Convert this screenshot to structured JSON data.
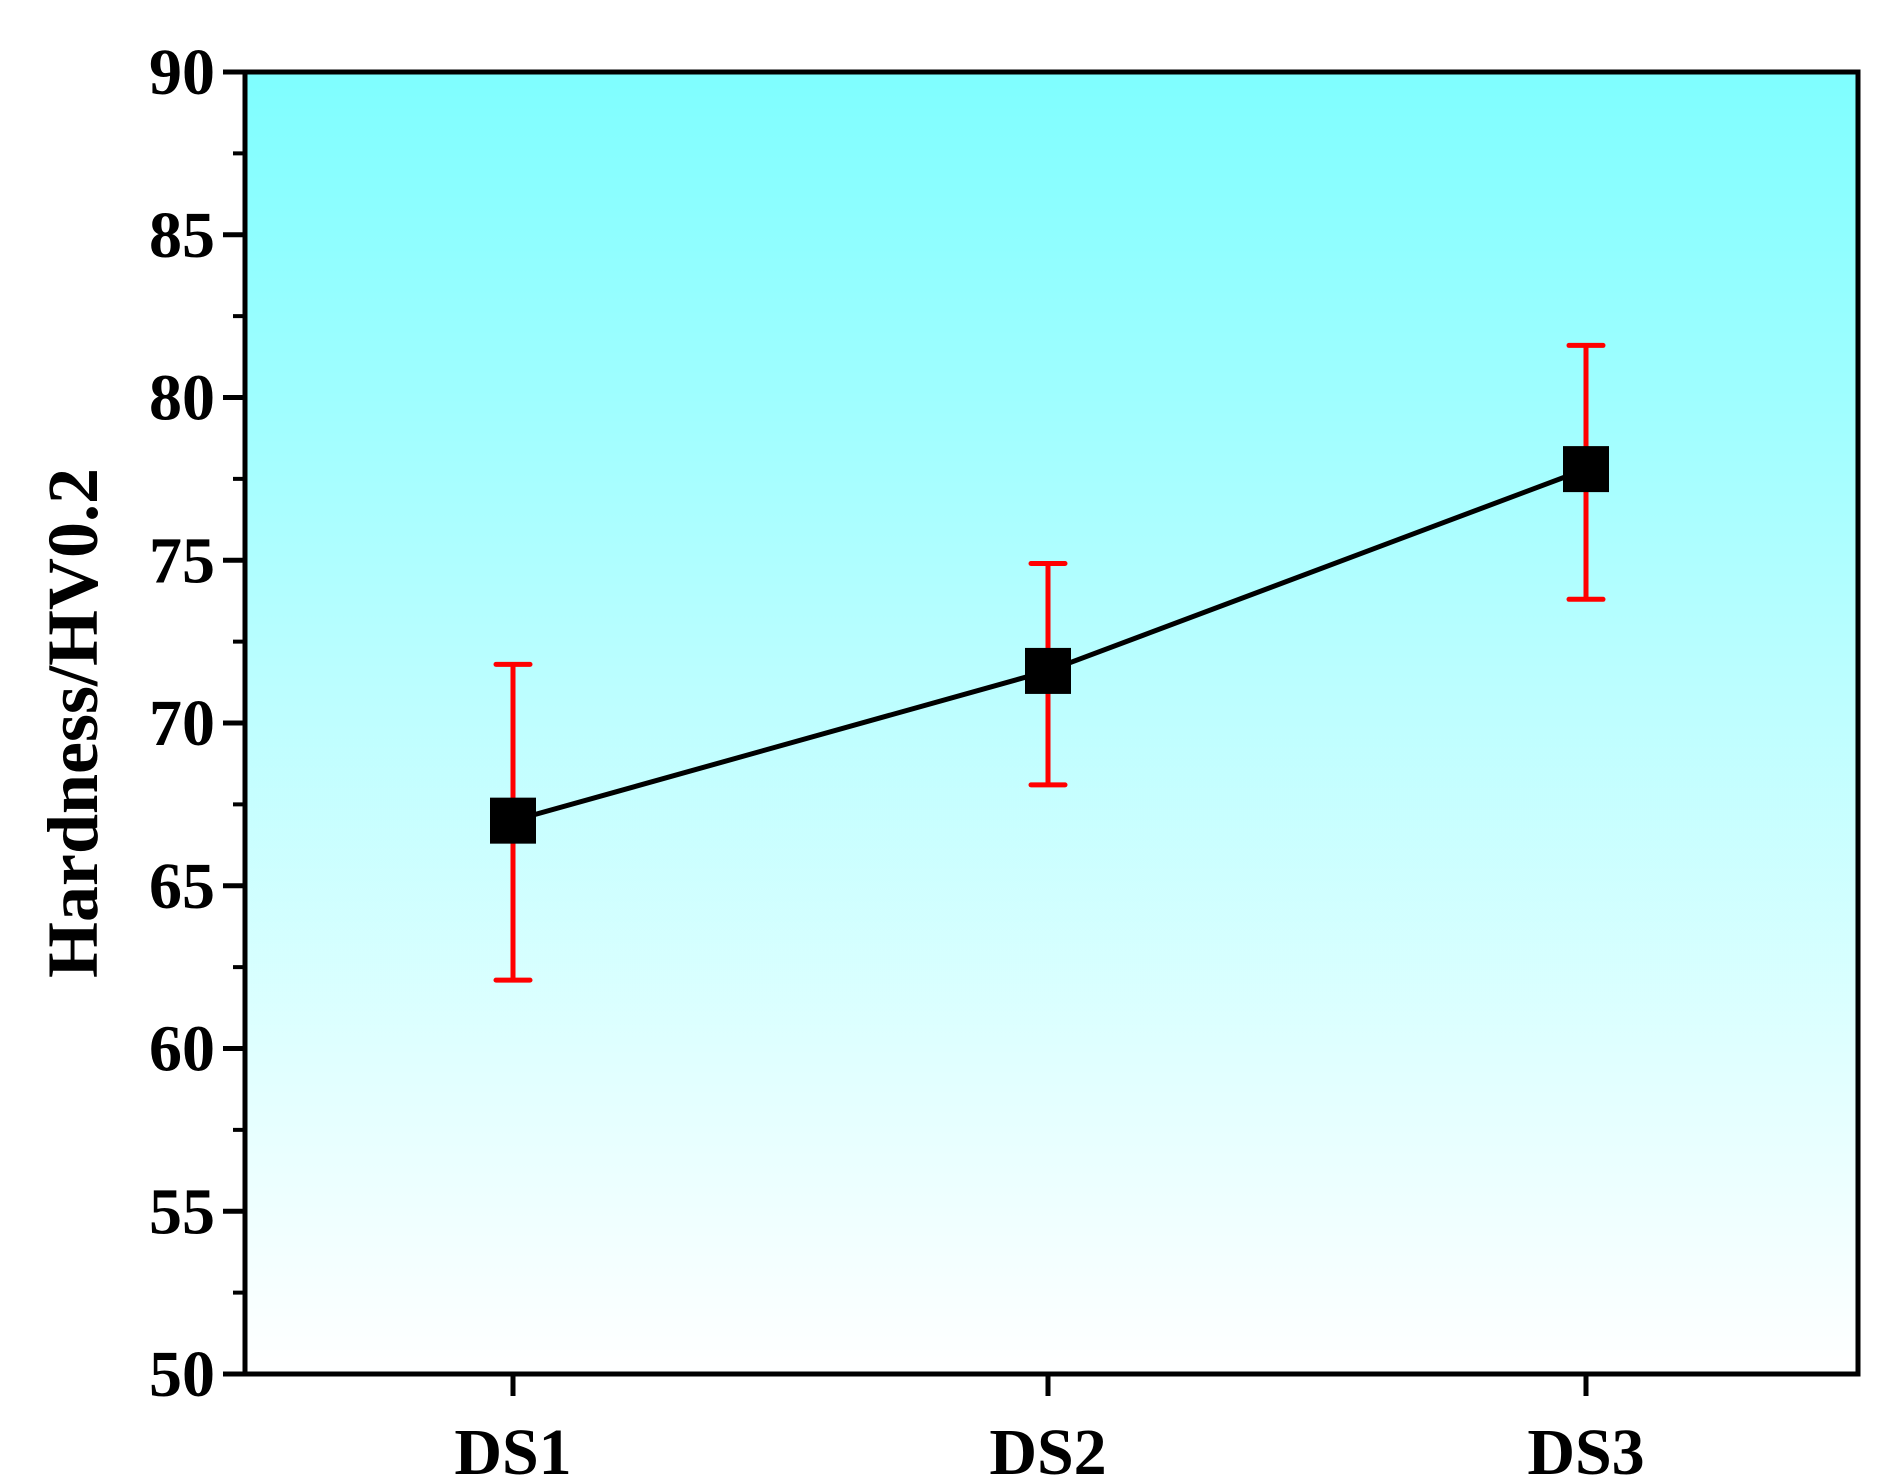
{
  "chart_data": {
    "type": "line",
    "title": "",
    "xlabel": "",
    "ylabel": "Hardness/HV0.2",
    "categories": [
      "DS1",
      "DS2",
      "DS3"
    ],
    "series": [
      {
        "values": [
          67.0,
          71.6,
          77.8
        ],
        "error_low": [
          62.1,
          68.1,
          73.8
        ],
        "error_high": [
          71.8,
          74.9,
          81.6
        ]
      }
    ],
    "ylim": [
      50,
      90
    ],
    "yticks": [
      50,
      55,
      60,
      65,
      70,
      75,
      80,
      85,
      90
    ],
    "ytick_labels": [
      "50",
      "55",
      "60",
      "65",
      "70",
      "75",
      "80",
      "85",
      "90"
    ],
    "grid": false,
    "legend": "none",
    "marker": "square",
    "colors": {
      "line": "#000000",
      "marker": "#000000",
      "error_bar": "#ff0000",
      "background_top": "#7ffeff",
      "background_bottom": "#ffffff"
    }
  }
}
